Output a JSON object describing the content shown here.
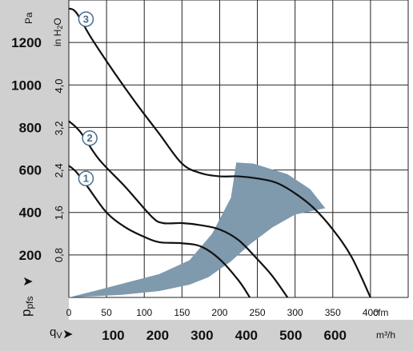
{
  "chart_data": {
    "type": "line",
    "title": "",
    "xlabel": "qV",
    "ylabel": "pfs",
    "x_unit_primary": "cfm",
    "x_unit_secondary": "m³/h",
    "y_unit_primary": "Pa",
    "y_unit_secondary": "in H2O",
    "xlim": [
      0,
      450
    ],
    "ylim": [
      0,
      1400
    ],
    "x_ticks_cfm": [
      0,
      50,
      100,
      150,
      200,
      250,
      300,
      350,
      400
    ],
    "x_ticks_m3h": [
      100,
      200,
      300,
      400,
      500,
      600
    ],
    "y_ticks_pa": [
      200,
      400,
      600,
      800,
      1000,
      1200
    ],
    "y_ticks_inh2o": [
      "0,8",
      "1,6",
      "2,4",
      "3,2",
      "4,0"
    ],
    "grid": true,
    "series": [
      {
        "name": "1",
        "x": [
          0,
          10,
          25,
          50,
          75,
          100,
          120,
          150,
          175,
          200,
          225,
          240
        ],
        "y": [
          620,
          590,
          520,
          400,
          330,
          285,
          260,
          255,
          240,
          180,
          80,
          0
        ]
      },
      {
        "name": "2",
        "x": [
          0,
          15,
          40,
          75,
          110,
          125,
          150,
          175,
          200,
          225,
          250,
          270,
          290
        ],
        "y": [
          830,
          780,
          650,
          520,
          380,
          350,
          350,
          340,
          320,
          270,
          180,
          100,
          0
        ]
      },
      {
        "name": "3",
        "x": [
          0,
          10,
          30,
          60,
          90,
          120,
          150,
          175,
          200,
          225,
          250,
          275,
          300,
          325,
          350,
          375,
          400
        ],
        "y": [
          1360,
          1340,
          1220,
          1060,
          910,
          770,
          630,
          585,
          570,
          570,
          560,
          540,
          490,
          420,
          320,
          190,
          0
        ]
      }
    ],
    "operating_range": {
      "color": "#7f99ad",
      "outline": [
        [
          0,
          0
        ],
        [
          50,
          45
        ],
        [
          120,
          110
        ],
        [
          160,
          175
        ],
        [
          190,
          300
        ],
        [
          215,
          470
        ],
        [
          222,
          635
        ],
        [
          245,
          630
        ],
        [
          290,
          580
        ],
        [
          320,
          510
        ],
        [
          340,
          420
        ],
        [
          300,
          390
        ],
        [
          270,
          330
        ],
        [
          240,
          250
        ],
        [
          215,
          170
        ],
        [
          185,
          95
        ],
        [
          160,
          60
        ],
        [
          120,
          30
        ],
        [
          70,
          12
        ],
        [
          0,
          0
        ]
      ]
    },
    "series_markers": [
      {
        "series": "1",
        "label": "1"
      },
      {
        "series": "2",
        "label": "2"
      },
      {
        "series": "3",
        "label": "3"
      }
    ],
    "colors": {
      "curve": "#111111",
      "grid": "#222222",
      "axis_band": "#d0d0d0",
      "marker": "#4a6d8c"
    }
  }
}
